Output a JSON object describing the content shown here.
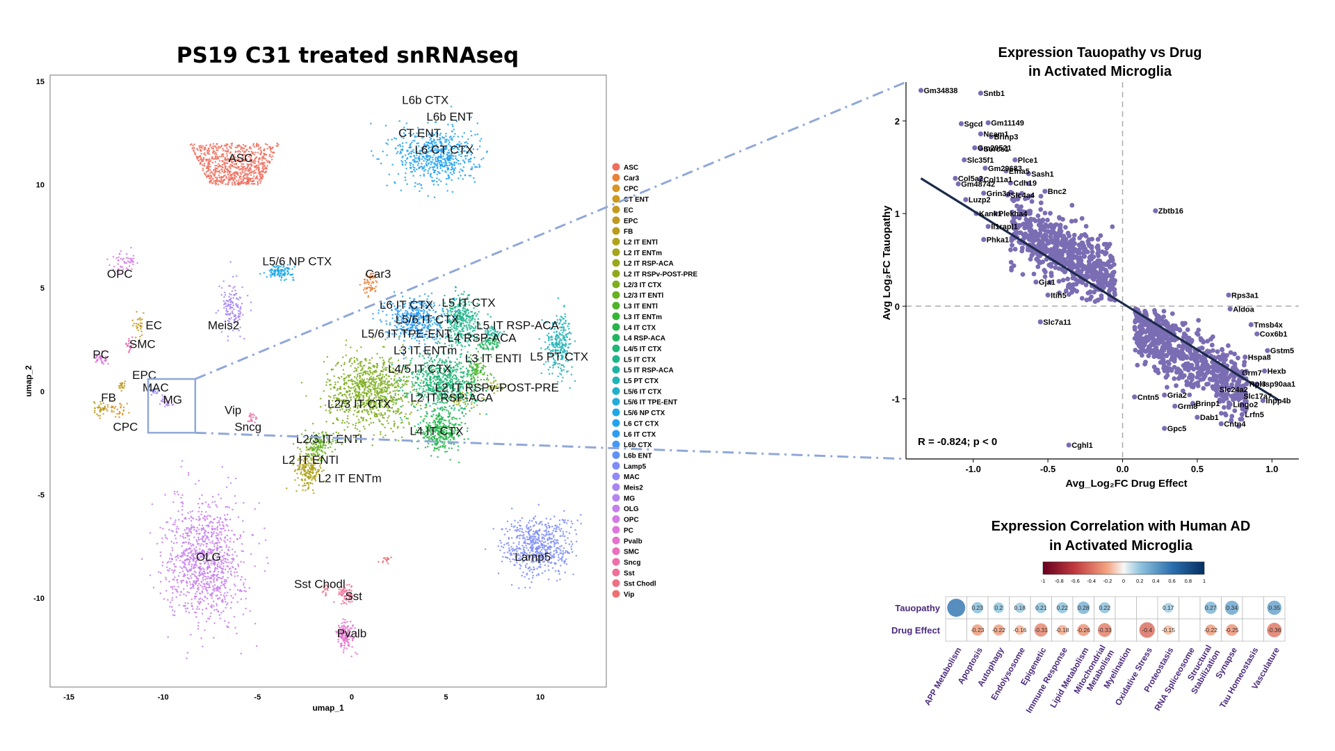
{
  "umap": {
    "title": "PS19 C31 treated snRNAseq",
    "xlabel": "umap_1",
    "ylabel": "umap_2",
    "xlim": [
      -16,
      13.5
    ],
    "ylim": [
      -14.3,
      15.3
    ],
    "xticks": [
      "-15",
      "-10",
      "-5",
      "0",
      "5",
      "10"
    ],
    "xtick_values": [
      -15,
      -10,
      -5,
      0,
      5,
      10
    ],
    "yticks": [
      "-10",
      "-5",
      "0",
      "5",
      "10",
      "15"
    ],
    "ytick_values": [
      -10,
      -5,
      0,
      5,
      10,
      15
    ],
    "zoom_box": {
      "label": "MG",
      "x_range": [
        -10.8,
        -8.3
      ],
      "y_range": [
        -2.0,
        0.6
      ]
    },
    "clusters": [
      {
        "name": "ASC",
        "color": "#EE6F5E",
        "cx": -6.2,
        "cy": 11.0,
        "sx": 2.4,
        "sy": 1.0,
        "n": 720,
        "shape": "tri",
        "lx": -5.9,
        "ly": 11.1
      },
      {
        "name": "Car3",
        "color": "#E8823A",
        "cx": 1.0,
        "cy": 5.2,
        "sx": 0.35,
        "sy": 0.5,
        "n": 60,
        "lx": 1.4,
        "ly": 5.5
      },
      {
        "name": "CPC",
        "color": "#D89424",
        "cx": -12.5,
        "cy": -0.8,
        "sx": 0.7,
        "sy": 0.35,
        "n": 40,
        "lx": -12.0,
        "ly": -1.9
      },
      {
        "name": "CT ENT",
        "color": "#CC9A1F",
        "cx": 4.9,
        "cy": 11.5,
        "sx": 1.0,
        "sy": 0.6,
        "n": 0,
        "lx": 3.6,
        "ly": 12.3
      },
      {
        "name": "EC",
        "color": "#C39A22",
        "cx": -11.3,
        "cy": 3.2,
        "sx": 0.3,
        "sy": 0.5,
        "n": 30,
        "lx": -10.5,
        "ly": 3.0
      },
      {
        "name": "EPC",
        "color": "#BE9A24",
        "cx": -12.2,
        "cy": 0.3,
        "sx": 0.15,
        "sy": 0.2,
        "n": 20,
        "lx": -11.0,
        "ly": 0.6
      },
      {
        "name": "FB",
        "color": "#B89C1E",
        "cx": -13.3,
        "cy": -0.8,
        "sx": 0.3,
        "sy": 0.3,
        "n": 30,
        "lx": -12.9,
        "ly": -0.5
      },
      {
        "name": "L2 IT ENTl",
        "color": "#AFA31C",
        "cx": -2.3,
        "cy": -3.8,
        "sx": 0.6,
        "sy": 0.7,
        "n": 200,
        "lx": -2.2,
        "ly": -3.5
      },
      {
        "name": "L2 IT ENTm",
        "color": "#A3A51B",
        "cx": -1.5,
        "cy": -4.3,
        "sx": 0.5,
        "sy": 0.5,
        "n": 0,
        "lx": -0.1,
        "ly": -4.4
      },
      {
        "name": "L2 IT RSP-ACA",
        "color": "#99A81D",
        "cx": 5.8,
        "cy": -0.4,
        "sx": 0.8,
        "sy": 0.4,
        "n": 50,
        "lx": 5.3,
        "ly": -0.5
      },
      {
        "name": "L2 IT RSPv-POST-PRE",
        "color": "#8EAA1C",
        "cx": 7.6,
        "cy": 0.3,
        "sx": 0.4,
        "sy": 0.3,
        "n": 30,
        "lx": 7.7,
        "ly": 0.0
      },
      {
        "name": "L2/3 IT CTX",
        "color": "#7EAE1E",
        "cx": 1.0,
        "cy": 0.0,
        "sx": 1.9,
        "sy": 1.5,
        "n": 900,
        "lx": 0.4,
        "ly": -0.8
      },
      {
        "name": "L2/3 IT ENTl",
        "color": "#66B123",
        "cx": -1.8,
        "cy": -2.6,
        "sx": 0.7,
        "sy": 0.5,
        "n": 150,
        "lx": -1.2,
        "ly": -2.5
      },
      {
        "name": "L3 IT ENTl",
        "color": "#4DB42A",
        "cx": 6.6,
        "cy": 1.0,
        "sx": 0.6,
        "sy": 0.6,
        "n": 90,
        "lx": 7.5,
        "ly": 1.4
      },
      {
        "name": "L3 IT ENTm",
        "color": "#35B536",
        "cx": 4.2,
        "cy": 2.2,
        "sx": 0.8,
        "sy": 0.6,
        "n": 0,
        "lx": 3.9,
        "ly": 1.8
      },
      {
        "name": "L4 IT CTX",
        "color": "#27B44A",
        "cx": 4.7,
        "cy": -2.0,
        "sx": 1.0,
        "sy": 0.7,
        "n": 320,
        "lx": 4.5,
        "ly": -2.1
      },
      {
        "name": "L4 RSP-ACA",
        "color": "#22B55F",
        "cx": 7.3,
        "cy": 2.3,
        "sx": 0.5,
        "sy": 0.4,
        "n": 80,
        "lx": 6.9,
        "ly": 2.4
      },
      {
        "name": "L4/5 IT CTX",
        "color": "#1FB577",
        "cx": 4.8,
        "cy": 0.4,
        "sx": 1.5,
        "sy": 1.2,
        "n": 650,
        "lx": 3.6,
        "ly": 0.9
      },
      {
        "name": "L5 IT CTX",
        "color": "#1EB58C",
        "cx": 5.8,
        "cy": 3.4,
        "sx": 0.8,
        "sy": 1.0,
        "n": 340,
        "lx": 6.2,
        "ly": 4.1
      },
      {
        "name": "L5 IT RSP-ACA",
        "color": "#1FB4A2",
        "cx": 7.5,
        "cy": 2.8,
        "sx": 0.4,
        "sy": 0.3,
        "n": 50,
        "lx": 8.8,
        "ly": 3.0
      },
      {
        "name": "L5 PT CTX",
        "color": "#21B3B7",
        "cx": 11.0,
        "cy": 2.3,
        "sx": 0.6,
        "sy": 1.2,
        "n": 260,
        "lx": 11.0,
        "ly": 1.5
      },
      {
        "name": "L5/6 IT CTX",
        "color": "#22B0C9",
        "cx": 3.8,
        "cy": 4.3,
        "sx": 0.7,
        "sy": 0.5,
        "n": 0,
        "lx": 4.0,
        "ly": 3.3
      },
      {
        "name": "L5/6 IT TPE-ENT",
        "color": "#22ADD9",
        "cx": 3.5,
        "cy": 2.8,
        "sx": 0.6,
        "sy": 0.4,
        "n": 0,
        "lx": 2.9,
        "ly": 2.6
      },
      {
        "name": "L5/6 NP CTX",
        "color": "#1FA8E6",
        "cx": -3.8,
        "cy": 5.8,
        "sx": 0.6,
        "sy": 0.25,
        "n": 110,
        "lx": -2.9,
        "ly": 6.1
      },
      {
        "name": "L6 CT CTX",
        "color": "#22A2EE",
        "cx": 4.5,
        "cy": 11.4,
        "sx": 1.8,
        "sy": 1.2,
        "n": 620,
        "lx": 4.9,
        "ly": 11.5
      },
      {
        "name": "L6 IT CTX",
        "color": "#2D9DF2",
        "cx": 3.3,
        "cy": 3.5,
        "sx": 1.3,
        "sy": 0.9,
        "n": 420,
        "lx": 2.9,
        "ly": 4.0
      },
      {
        "name": "L6b CTX",
        "color": "#4797F5",
        "cx": 4.2,
        "cy": 13.2,
        "sx": 0.9,
        "sy": 0.5,
        "n": 0,
        "lx": 3.9,
        "ly": 13.9
      },
      {
        "name": "L6b ENT",
        "color": "#6091F7",
        "cx": 5.4,
        "cy": 12.7,
        "sx": 0.7,
        "sy": 0.4,
        "n": 0,
        "lx": 5.2,
        "ly": 13.1
      },
      {
        "name": "Lamp5",
        "color": "#7D8CF6",
        "cx": 9.9,
        "cy": -7.5,
        "sx": 1.6,
        "sy": 1.2,
        "n": 560,
        "lx": 9.6,
        "ly": -8.2
      },
      {
        "name": "MAC",
        "color": "#9388F5",
        "cx": -10.5,
        "cy": 0.0,
        "sx": 0.2,
        "sy": 0.15,
        "n": 15,
        "lx": -10.4,
        "ly": 0.0
      },
      {
        "name": "Meis2",
        "color": "#A786F3",
        "cx": -6.3,
        "cy": 4.0,
        "sx": 0.5,
        "sy": 1.0,
        "n": 130,
        "lx": -6.8,
        "ly": 3.0
      },
      {
        "name": "MG",
        "color": "#B584F0",
        "cx": -9.9,
        "cy": -0.5,
        "sx": 0.3,
        "sy": 0.25,
        "n": 25,
        "lx": -9.5,
        "ly": -0.6
      },
      {
        "name": "OLG",
        "color": "#C67FEC",
        "cx": -7.8,
        "cy": -8.2,
        "sx": 1.7,
        "sy": 2.4,
        "n": 1000,
        "lx": -7.6,
        "ly": -8.2
      },
      {
        "name": "OPC",
        "color": "#D47BE6",
        "cx": -12.0,
        "cy": 6.3,
        "sx": 0.6,
        "sy": 0.4,
        "n": 50,
        "lx": -12.3,
        "ly": 5.5
      },
      {
        "name": "PC",
        "color": "#DE77DC",
        "cx": -13.3,
        "cy": 1.6,
        "sx": 0.4,
        "sy": 0.25,
        "n": 35,
        "lx": -13.3,
        "ly": 1.6
      },
      {
        "name": "Pvalb",
        "color": "#E573CD",
        "cx": -0.3,
        "cy": -11.8,
        "sx": 0.4,
        "sy": 0.6,
        "n": 130,
        "lx": 0.0,
        "ly": -11.9
      },
      {
        "name": "SMC",
        "color": "#EA70BC",
        "cx": -11.8,
        "cy": 2.2,
        "sx": 0.3,
        "sy": 0.3,
        "n": 20,
        "lx": -11.1,
        "ly": 2.1
      },
      {
        "name": "Sncg",
        "color": "#EC70AA",
        "cx": -5.3,
        "cy": -1.3,
        "sx": 0.25,
        "sy": 0.2,
        "n": 20,
        "lx": -5.5,
        "ly": -1.9
      },
      {
        "name": "Sst",
        "color": "#ED7098",
        "cx": -0.3,
        "cy": -9.8,
        "sx": 0.35,
        "sy": 0.4,
        "n": 70,
        "lx": 0.1,
        "ly": -10.1
      },
      {
        "name": "Sst Chodl",
        "color": "#ED7086",
        "cx": -1.3,
        "cy": -9.6,
        "sx": 0.2,
        "sy": 0.2,
        "n": 15,
        "lx": -1.7,
        "ly": -9.5
      },
      {
        "name": "Vip",
        "color": "#EC7075",
        "cx": 1.8,
        "cy": -8.1,
        "sx": 0.2,
        "sy": 0.15,
        "n": 15,
        "lx": -6.3,
        "ly": -1.1
      }
    ]
  },
  "legend": {
    "items": [
      "ASC",
      "Car3",
      "CPC",
      "CT ENT",
      "EC",
      "EPC",
      "FB",
      "L2 IT ENTl",
      "L2 IT ENTm",
      "L2 IT RSP-ACA",
      "L2 IT RSPv-POST-PRE",
      "L2/3 IT CTX",
      "L2/3 IT ENTl",
      "L3 IT ENTl",
      "L3 IT ENTm",
      "L4 IT CTX",
      "L4 RSP-ACA",
      "L4/5 IT CTX",
      "L5 IT CTX",
      "L5 IT RSP-ACA",
      "L5 PT CTX",
      "L5/6 IT CTX",
      "L5/6 IT TPE-ENT",
      "L5/6 NP CTX",
      "L6 CT CTX",
      "L6 IT CTX",
      "L6b CTX",
      "L6b ENT",
      "Lamp5",
      "MAC",
      "Meis2",
      "MG",
      "OLG",
      "OPC",
      "PC",
      "Pvalb",
      "SMC",
      "Sncg",
      "Sst",
      "Sst Chodl",
      "Vip"
    ]
  },
  "scatter": {
    "title_line1": "Expression Tauopathy vs Drug",
    "title_line2": "in Activated Microglia",
    "xlabel": "Avg_Log₂FC Drug Effect",
    "ylabel": "Avg Log₂FC Tauopathy",
    "xlim": [
      -1.45,
      1.18
    ],
    "ylim": [
      -1.65,
      2.42
    ],
    "xticks": [
      "-1.0",
      "-0.5",
      "0.0",
      "0.5",
      "1.0"
    ],
    "xtick_values": [
      -1.0,
      -0.5,
      0.0,
      0.5,
      1.0
    ],
    "yticks": [
      "-1",
      "0",
      "1",
      "2"
    ],
    "ytick_values": [
      -1,
      0,
      1,
      2
    ],
    "stat_text": "R = -0.824; p < 0",
    "point_color": "#7B6DB3",
    "line_color": "#1B2A4A",
    "fit": {
      "x0": -1.35,
      "y0": 1.38,
      "x1": 1.05,
      "y1": -1.02
    },
    "labeled_genes": [
      {
        "gene": "Gm34838",
        "x": -1.35,
        "y": 2.33
      },
      {
        "gene": "Sntb1",
        "x": -0.95,
        "y": 2.3
      },
      {
        "gene": "Sgcd",
        "x": -1.08,
        "y": 1.97
      },
      {
        "gene": "Gm11149",
        "x": -0.9,
        "y": 1.98
      },
      {
        "gene": "Ncam1",
        "x": -0.95,
        "y": 1.86
      },
      {
        "gene": "Brinp3",
        "x": -0.88,
        "y": 1.83
      },
      {
        "gene": "Gm29521",
        "x": -0.99,
        "y": 1.71
      },
      {
        "gene": "Sorcs1",
        "x": -0.95,
        "y": 1.7
      },
      {
        "gene": "Slc35f1",
        "x": -1.06,
        "y": 1.58
      },
      {
        "gene": "Plce1",
        "x": -0.72,
        "y": 1.58
      },
      {
        "gene": "Gm29683",
        "x": -0.92,
        "y": 1.49
      },
      {
        "gene": "Efna5",
        "x": -0.78,
        "y": 1.46
      },
      {
        "gene": "Sash1",
        "x": -0.63,
        "y": 1.43
      },
      {
        "gene": "Col5a2",
        "x": -1.12,
        "y": 1.38
      },
      {
        "gene": "Col11a1",
        "x": -0.95,
        "y": 1.37
      },
      {
        "gene": "Cdh19",
        "x": -0.75,
        "y": 1.33
      },
      {
        "gene": "Gm48742",
        "x": -1.1,
        "y": 1.32
      },
      {
        "gene": "Bnc2",
        "x": -0.52,
        "y": 1.24
      },
      {
        "gene": "Grin3a",
        "x": -0.93,
        "y": 1.22
      },
      {
        "gene": "Slc4a4",
        "x": -0.77,
        "y": 1.2
      },
      {
        "gene": "Luzp2",
        "x": -1.05,
        "y": 1.15
      },
      {
        "gene": "Kank1",
        "x": -0.98,
        "y": 1.0
      },
      {
        "gene": "Plekha4",
        "x": -0.85,
        "y": 1.0
      },
      {
        "gene": "Zbtb16",
        "x": 0.22,
        "y": 1.03
      },
      {
        "gene": "Il1rapl1",
        "x": -0.9,
        "y": 0.86
      },
      {
        "gene": "Phka1",
        "x": -0.93,
        "y": 0.72
      },
      {
        "gene": "Gja1",
        "x": -0.58,
        "y": 0.26
      },
      {
        "gene": "Itih5",
        "x": -0.5,
        "y": 0.12
      },
      {
        "gene": "Slc7a11",
        "x": -0.55,
        "y": -0.17
      },
      {
        "gene": "Rps3a1",
        "x": 0.71,
        "y": 0.12
      },
      {
        "gene": "Aldoa",
        "x": 0.72,
        "y": -0.03
      },
      {
        "gene": "Tmsb4x",
        "x": 0.86,
        "y": -0.2
      },
      {
        "gene": "Cox6b1",
        "x": 0.9,
        "y": -0.3
      },
      {
        "gene": "Gstm5",
        "x": 0.97,
        "y": -0.48
      },
      {
        "gene": "Hspa8",
        "x": 0.82,
        "y": -0.55
      },
      {
        "gene": "Hexb",
        "x": 0.95,
        "y": -0.7
      },
      {
        "gene": "Grm7",
        "x": 0.78,
        "y": -0.72
      },
      {
        "gene": "Rpl3",
        "x": 0.83,
        "y": -0.84
      },
      {
        "gene": "Hsp90aa1",
        "x": 0.9,
        "y": -0.84
      },
      {
        "gene": "Slc24a2",
        "x": 0.63,
        "y": -0.9
      },
      {
        "gene": "Slc17a7",
        "x": 0.79,
        "y": -0.97
      },
      {
        "gene": "Gria2",
        "x": 0.28,
        "y": -0.96
      },
      {
        "gene": "Cntn5",
        "x": 0.08,
        "y": -0.98
      },
      {
        "gene": "Inpp4b",
        "x": 0.94,
        "y": -1.02
      },
      {
        "gene": "Lingo2",
        "x": 0.72,
        "y": -1.06
      },
      {
        "gene": "Grm8",
        "x": 0.35,
        "y": -1.08
      },
      {
        "gene": "Brinp1",
        "x": 0.47,
        "y": -1.05
      },
      {
        "gene": "Lrfn5",
        "x": 0.8,
        "y": -1.17
      },
      {
        "gene": "Dab1",
        "x": 0.5,
        "y": -1.2
      },
      {
        "gene": "Cntn4",
        "x": 0.66,
        "y": -1.27
      },
      {
        "gene": "Gpc5",
        "x": 0.28,
        "y": -1.32
      },
      {
        "gene": "Cghl1",
        "x": -0.36,
        "y": -1.5
      }
    ]
  },
  "heatmap": {
    "title_line1": "Expression Correlation with Human AD",
    "title_line2": "in Activated Microglia",
    "colorbar_ticks": [
      "-1",
      "-0.8",
      "-0.6",
      "-0.4",
      "-0.2",
      "0",
      "0.2",
      "0.4",
      "0.6",
      "0.8",
      "1"
    ],
    "colorbar_values": [
      -1,
      -0.8,
      -0.6,
      -0.4,
      -0.2,
      0,
      0.2,
      0.4,
      0.6,
      0.8,
      1
    ],
    "row_color": "#4B2A7B",
    "rows": [
      "Tauopathy",
      "Drug Effect"
    ],
    "columns": [
      "APP Metabolism",
      "Apoptosis",
      "Autophagy",
      "Endolysosome",
      "Epigenetic",
      "Immune Response",
      "Lipid Metabolism",
      "Mitochondrial Metabolism",
      "Myelination",
      "Oxidative Stress",
      "Proteostasis",
      "RNA Spliceosome",
      "Structural Stabilization",
      "Synapse",
      "Tau Homeostasis",
      "Vasculature"
    ],
    "column_lines": [
      [
        "APP Metabolism"
      ],
      [
        "Apoptosis"
      ],
      [
        "Autophagy"
      ],
      [
        "Endolysosome"
      ],
      [
        "Epigenetic"
      ],
      [
        "Immune Response"
      ],
      [
        "Lipid Metabolism"
      ],
      [
        "Mitochondrial",
        "Metabolism"
      ],
      [
        "Myelination"
      ],
      [
        "Oxidative Stress"
      ],
      [
        "Proteostasis"
      ],
      [
        "RNA Spliceosome"
      ],
      [
        "Structural",
        "Stabilization"
      ],
      [
        "Synapse"
      ],
      [
        "Tau Homeostasis"
      ],
      [
        "Vasculature"
      ]
    ],
    "values": [
      [
        0.55,
        0.23,
        0.2,
        0.18,
        0.21,
        0.22,
        0.28,
        0.22,
        null,
        null,
        0.17,
        null,
        0.27,
        0.34,
        null,
        0.35
      ],
      [
        null,
        -0.23,
        -0.22,
        -0.16,
        -0.31,
        -0.18,
        -0.26,
        -0.33,
        null,
        -0.4,
        -0.15,
        null,
        -0.22,
        -0.25,
        null,
        -0.36
      ]
    ],
    "value_labels": [
      [
        "",
        "0.23",
        "0.2",
        "0.18",
        "0.21",
        "0.22",
        "0.28",
        "0.22",
        "",
        "",
        "0.17",
        "",
        "0.27",
        "0.34",
        "",
        "0.35"
      ],
      [
        "",
        "-0.23",
        "-0.22",
        "-0.16",
        "-0.31",
        "-0.18",
        "-0.26",
        "-0.33",
        "",
        "-0.4",
        "-0.15",
        "",
        "-0.22",
        "-0.25",
        "",
        "-0.36"
      ]
    ]
  },
  "chart_data": [
    {
      "type": "scatter",
      "title": "PS19 C31 treated snRNAseq",
      "xlabel": "umap_1",
      "ylabel": "umap_2",
      "xlim": [
        -16,
        13.5
      ],
      "ylim": [
        -14.3,
        15.3
      ],
      "series_ref": "umap.clusters"
    },
    {
      "type": "scatter",
      "title": "Expression Tauopathy vs Drug in Activated Microglia",
      "xlabel": "Avg_Log₂FC Drug Effect",
      "ylabel": "Avg Log₂FC Tauopathy",
      "xlim": [
        -1.45,
        1.18
      ],
      "ylim": [
        -1.65,
        2.42
      ],
      "correlation": -0.824,
      "series_ref": "scatter.labeled_genes"
    },
    {
      "type": "heatmap",
      "title": "Expression Correlation with Human AD in Activated Microglia",
      "rows_ref": "heatmap.rows",
      "columns_ref": "heatmap.columns",
      "values_ref": "heatmap.values"
    }
  ]
}
